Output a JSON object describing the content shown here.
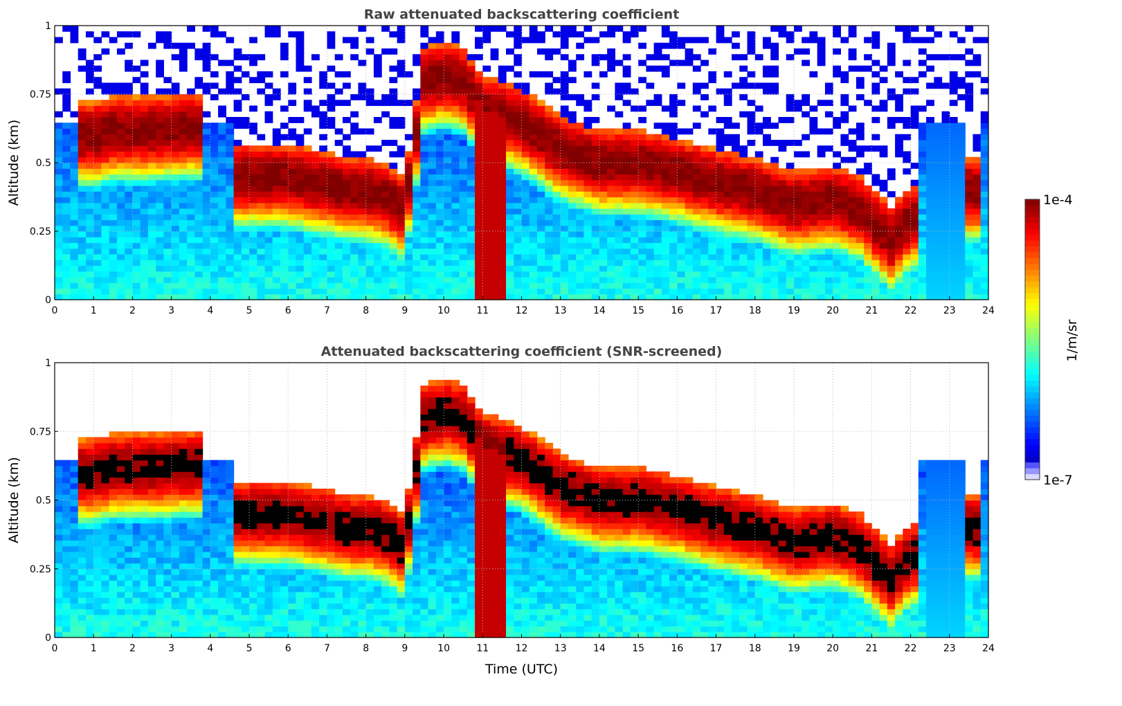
{
  "chart_data": [
    {
      "type": "heatmap",
      "title": "Raw attenuated backscattering coefficient",
      "xlabel": "",
      "ylabel": "Altitude (km)",
      "xlim": [
        0,
        24
      ],
      "ylim": [
        0,
        1
      ],
      "xticks": [
        "0",
        "1",
        "2",
        "3",
        "4",
        "5",
        "6",
        "7",
        "8",
        "9",
        "10",
        "11",
        "12",
        "13",
        "14",
        "15",
        "16",
        "17",
        "18",
        "19",
        "20",
        "21",
        "22",
        "23",
        "24"
      ],
      "yticks": [
        "0",
        "0.25",
        "0.5",
        "0.75",
        "1"
      ],
      "grid": true,
      "screened": false
    },
    {
      "type": "heatmap",
      "title": "Attenuated backscattering coefficient (SNR-screened)",
      "xlabel": "Time (UTC)",
      "ylabel": "Altitude (km)",
      "xlim": [
        0,
        24
      ],
      "ylim": [
        0,
        1
      ],
      "xticks": [
        "0",
        "1",
        "2",
        "3",
        "4",
        "5",
        "6",
        "7",
        "8",
        "9",
        "10",
        "11",
        "12",
        "13",
        "14",
        "15",
        "16",
        "17",
        "18",
        "19",
        "20",
        "21",
        "22",
        "23",
        "24"
      ],
      "yticks": [
        "0",
        "0.25",
        "0.5",
        "0.75",
        "1"
      ],
      "grid": true,
      "screened": true
    }
  ],
  "layer_profile": {
    "time_h": [
      0,
      1,
      1.5,
      2.5,
      3.5,
      4,
      5,
      6,
      7,
      7.5,
      8,
      8.5,
      9,
      9.5,
      10,
      10.5,
      11,
      12,
      13,
      14,
      15,
      16,
      17,
      18,
      19,
      20,
      20.7,
      21.5,
      22,
      22.3,
      23,
      23.6,
      24
    ],
    "layer_center_km": [
      null,
      0.6,
      0.62,
      0.62,
      0.63,
      null,
      0.45,
      0.45,
      0.42,
      0.4,
      0.4,
      0.38,
      0.33,
      0.8,
      0.82,
      0.8,
      0.7,
      0.65,
      0.55,
      0.5,
      0.5,
      0.47,
      0.43,
      0.4,
      0.35,
      0.37,
      0.33,
      0.22,
      0.3,
      null,
      null,
      0.4,
      null
    ],
    "precipitation_h": [
      10.8,
      11.6
    ]
  },
  "colorbar": {
    "label": "1/m/sr",
    "max_label": "1e-4",
    "min_label": "1e-7",
    "log10_range": [
      -7,
      -4
    ]
  }
}
